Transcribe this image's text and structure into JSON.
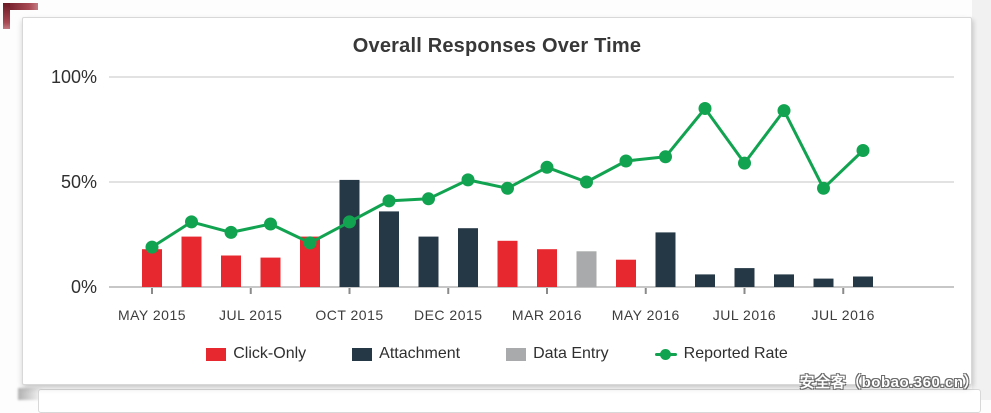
{
  "page": {
    "watermark": "安全客（bobao.360.cn）"
  },
  "chart_data": {
    "type": "bar+line",
    "title": "Overall Responses Over Time",
    "ylim": [
      0,
      100
    ],
    "grid": "horizontal",
    "legend_position": "bottom",
    "y_tick_labels": [
      "100%",
      "50%",
      "0%"
    ],
    "y_tick_values": [
      100,
      50,
      0
    ],
    "x_tick_labels": [
      "MAY 2015",
      "JUL 2015",
      "OCT 2015",
      "DEC 2015",
      "MAR 2016",
      "MAY 2016",
      "JUL 2016",
      "JUL 2016"
    ],
    "x_tick_slots": [
      0,
      2.5,
      5,
      7.5,
      10,
      12.5,
      15,
      17.5
    ],
    "bars": [
      {
        "series": "Click-Only",
        "value": 18
      },
      {
        "series": "Click-Only",
        "value": 24
      },
      {
        "series": "Click-Only",
        "value": 15
      },
      {
        "series": "Click-Only",
        "value": 14
      },
      {
        "series": "Click-Only",
        "value": 24
      },
      {
        "series": "Attachment",
        "value": 51
      },
      {
        "series": "Attachment",
        "value": 36
      },
      {
        "series": "Attachment",
        "value": 24
      },
      {
        "series": "Attachment",
        "value": 28
      },
      {
        "series": "Click-Only",
        "value": 22
      },
      {
        "series": "Click-Only",
        "value": 18
      },
      {
        "series": "Data Entry",
        "value": 17
      },
      {
        "series": "Click-Only",
        "value": 13
      },
      {
        "series": "Attachment",
        "value": 26
      },
      {
        "series": "Attachment",
        "value": 6
      },
      {
        "series": "Attachment",
        "value": 9
      },
      {
        "series": "Attachment",
        "value": 6
      },
      {
        "series": "Attachment",
        "value": 4
      },
      {
        "series": "Attachment",
        "value": 5
      }
    ],
    "line_series": {
      "name": "Reported Rate",
      "values": [
        19,
        31,
        26,
        30,
        21,
        31,
        41,
        42,
        51,
        47,
        57,
        50,
        60,
        62,
        85,
        59,
        84,
        47,
        65
      ]
    },
    "colors": {
      "Click-Only": "#e7282f",
      "Attachment": "#253845",
      "Data Entry": "#a8aaab",
      "Reported Rate": "#12a351"
    },
    "legend": [
      {
        "label": "Click-Only",
        "marker": "square"
      },
      {
        "label": "Attachment",
        "marker": "square"
      },
      {
        "label": "Data Entry",
        "marker": "square"
      },
      {
        "label": "Reported Rate",
        "marker": "line-dot"
      }
    ]
  }
}
